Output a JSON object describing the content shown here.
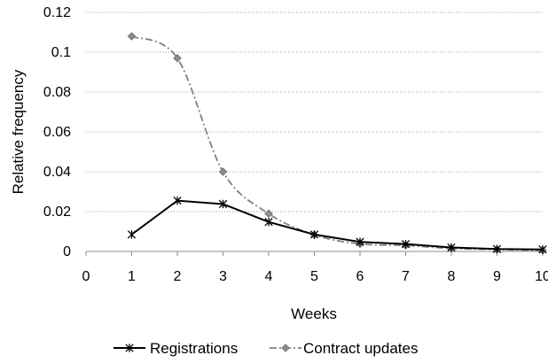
{
  "chart_data": {
    "type": "line",
    "title": "",
    "xlabel": "Weeks",
    "ylabel": "Relative frequency",
    "xlim": [
      0,
      10
    ],
    "ylim": [
      0,
      0.12
    ],
    "x_ticks": [
      "0",
      "1",
      "2",
      "3",
      "4",
      "5",
      "6",
      "7",
      "8",
      "9",
      "10"
    ],
    "y_ticks": [
      "0",
      "0.02",
      "0.04",
      "0.06",
      "0.08",
      "0.1",
      "0.12"
    ],
    "grid": true,
    "legend_position": "bottom",
    "x": [
      1,
      2,
      3,
      4,
      5,
      6,
      7,
      8,
      9,
      10
    ],
    "series": [
      {
        "name": "Registrations",
        "values": [
          0.0085,
          0.0255,
          0.0238,
          0.0148,
          0.0085,
          0.0048,
          0.0037,
          0.002,
          0.0012,
          0.001
        ],
        "color": "#000000",
        "line_style": "solid",
        "marker": "asterisk"
      },
      {
        "name": "Contract updates",
        "values": [
          0.108,
          0.097,
          0.04,
          0.019,
          0.0083,
          0.0038,
          0.003,
          0.0015,
          0.001,
          0.0005
        ],
        "color": "#808080",
        "line_style": "dash-dot",
        "marker": "diamond"
      }
    ]
  }
}
